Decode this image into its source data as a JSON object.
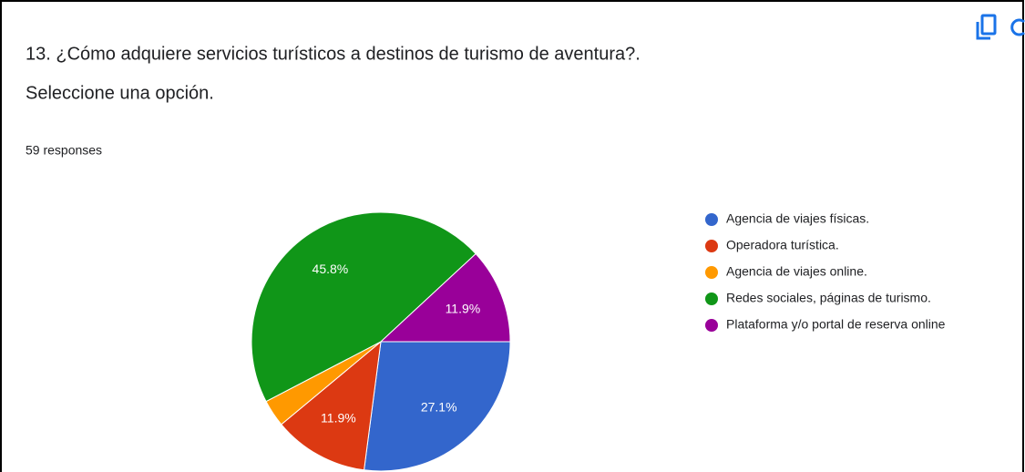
{
  "chart_data": {
    "type": "pie",
    "title": "13. ¿Cómo adquiere servicios turísticos a destinos de turismo de aventura?.",
    "subtitle": "Seleccione una opción.",
    "responses": "59 responses",
    "categories": [
      "Agencia de viajes físicas.",
      "Operadora turística.",
      "Agencia de viajes online.",
      "Redes sociales, páginas de turismo.",
      "Plataforma y/o portal de reserva online"
    ],
    "values": [
      27.1,
      11.9,
      3.4,
      45.8,
      11.9
    ],
    "value_labels": [
      "27.1%",
      "11.9%",
      null,
      "45.8%",
      "11.9%"
    ],
    "colors": [
      "#3366cc",
      "#dc3912",
      "#ff9900",
      "#109618",
      "#990099"
    ],
    "legend": "right"
  }
}
